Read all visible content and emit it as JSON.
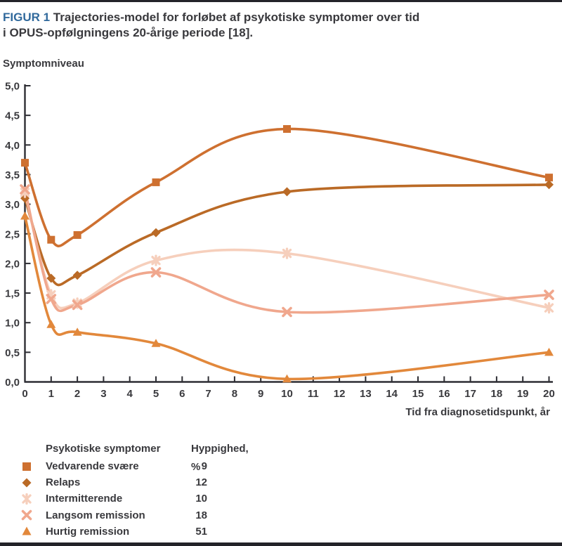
{
  "header": {
    "figure_label": "FIGUR 1",
    "title_line1": "Trajectories-model for forløbet af psykotiske symptomer over tid",
    "title_line2": "i OPUS-opfølgningens 20-årige periode [18]."
  },
  "legend": {
    "col_symptoms": "Psykotiske symptomer",
    "col_frequency": "Hyppighed, %"
  },
  "colors": {
    "figur_blue": "#30699C",
    "text_dark": "#39393d",
    "axis": "#2d2d33",
    "border_bar": "#232329"
  },
  "chart_data": {
    "type": "line",
    "title": "FIGUR 1 Trajectories-model for forløbet af psykotiske symptomer over tid i OPUS-opfølgningens 20-årige periode [18].",
    "ylabel": "Symptomniveau",
    "xlabel": "Tid fra diagnosetidspunkt, år",
    "xlim": [
      0,
      20
    ],
    "ylim": [
      0,
      5
    ],
    "xticks": [
      0,
      1,
      2,
      3,
      4,
      5,
      6,
      7,
      8,
      9,
      10,
      11,
      12,
      13,
      14,
      15,
      16,
      17,
      18,
      19,
      20
    ],
    "ytick_values": [
      0,
      0.5,
      1,
      1.5,
      2,
      2.5,
      3,
      3.5,
      4,
      4.5,
      5
    ],
    "ytick_labels": [
      "0,0",
      "0,5",
      "1,0",
      "1,5",
      "2,0",
      "2,5",
      "3,0",
      "3,5",
      "4,0",
      "4,5",
      "5,0"
    ],
    "grid": false,
    "legend_position": "bottom-left",
    "series": [
      {
        "name": "Vedvarende svære",
        "frequency_pct": 9,
        "marker": "square",
        "color": "#CE7030",
        "x": [
          0,
          1,
          2,
          5,
          10,
          20
        ],
        "y": [
          3.7,
          2.4,
          2.48,
          3.37,
          4.27,
          3.45
        ]
      },
      {
        "name": "Relaps",
        "frequency_pct": 12,
        "marker": "diamond",
        "color": "#BA6A26",
        "x": [
          0,
          1,
          2,
          5,
          10,
          20
        ],
        "y": [
          3.1,
          1.75,
          1.8,
          2.52,
          3.21,
          3.33
        ]
      },
      {
        "name": "Intermitterende",
        "frequency_pct": 10,
        "marker": "asterisk",
        "color": "#F6CFBC",
        "x": [
          0,
          1,
          2,
          5,
          10,
          20
        ],
        "y": [
          3.2,
          1.47,
          1.33,
          2.05,
          2.17,
          1.25
        ]
      },
      {
        "name": "Langsom remission",
        "frequency_pct": 18,
        "marker": "x",
        "color": "#F0A78D",
        "x": [
          0,
          1,
          2,
          5,
          10,
          20
        ],
        "y": [
          3.25,
          1.4,
          1.3,
          1.85,
          1.18,
          1.47
        ]
      },
      {
        "name": "Hurtig remission",
        "frequency_pct": 51,
        "marker": "triangle",
        "color": "#E2883B",
        "x": [
          0,
          1,
          2,
          5,
          10,
          20
        ],
        "y": [
          2.8,
          0.97,
          0.84,
          0.65,
          0.05,
          0.5
        ]
      }
    ]
  }
}
